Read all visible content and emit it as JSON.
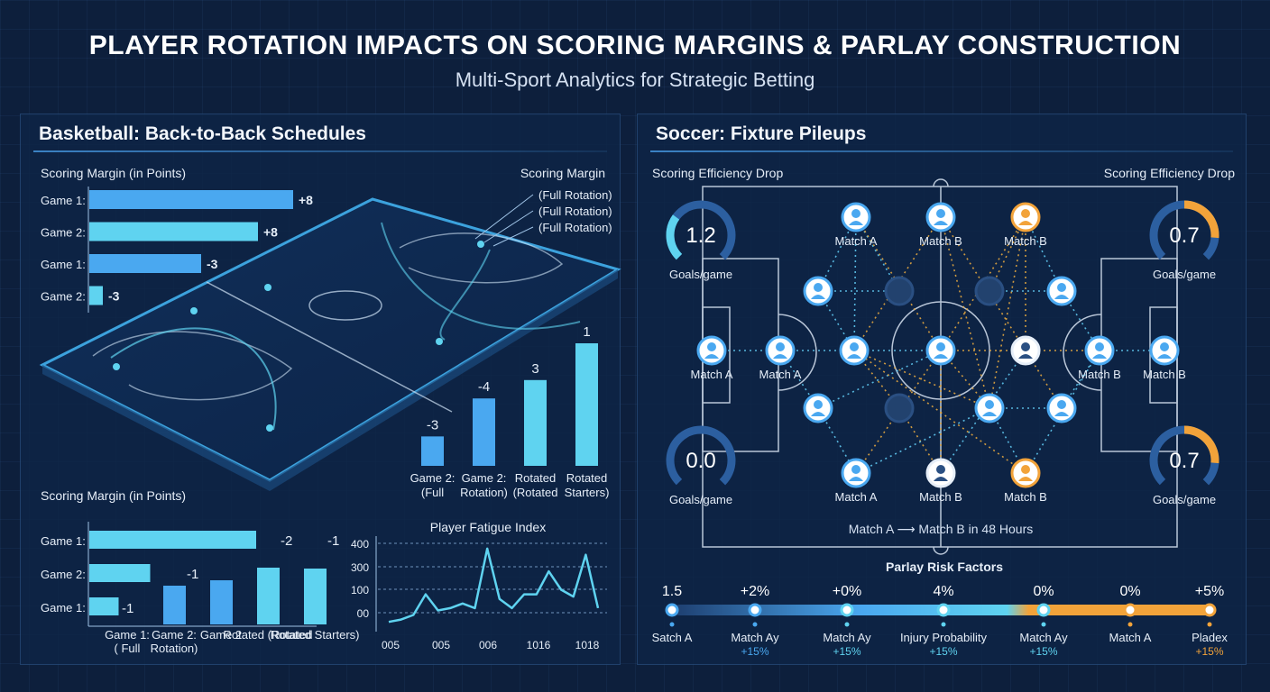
{
  "header": {
    "title": "PLAYER ROTATION IMPACTS ON SCORING MARGINS & PARLAY CONSTRUCTION",
    "subtitle": "Multi-Sport Analytics for Strategic Betting"
  },
  "basketball": {
    "title": "Basketball: Back-to-Back Schedules",
    "court_labels": [
      "(Full Rotation)",
      "(Full Rotation)",
      "(Full Rotation)"
    ],
    "court_heading": "Scoring Margin"
  },
  "soccer": {
    "title": "Soccer: Fixture Pileups",
    "eff_left": "Scoring Efficiency Drop",
    "eff_right": "Scoring Efficiency Drop",
    "caption": "Match A ⟶ Match B in 48 Hours",
    "gauges": [
      {
        "value": "1.2",
        "unit": "Goals/game",
        "fill": 0.3,
        "color": "#5fd3f0"
      },
      {
        "value": "0.7",
        "unit": "Goals/game",
        "fill": 0.35,
        "color": "#f2a33a"
      },
      {
        "value": "0.0",
        "unit": "Goals/game",
        "fill": 0.0,
        "color": "#5fd3f0"
      },
      {
        "value": "0.7",
        "unit": "Goals/game",
        "fill": 0.35,
        "color": "#f2a33a"
      }
    ],
    "node_labels": {
      "top": [
        "Match A",
        "Match B",
        "Match B"
      ],
      "middle_left": [
        "Match A",
        "Match A"
      ],
      "middle_right": [
        "Match B",
        "Match B"
      ],
      "bottom": [
        "Match A",
        "Match B",
        "Match B"
      ]
    }
  },
  "chart_data": [
    {
      "type": "bar",
      "orientation": "horizontal",
      "title": "Scoring Margin (in Points)",
      "categories": [
        "Game 1:",
        "Game 2:",
        "Game 1:",
        "Game 2:"
      ],
      "values": [
        8,
        8,
        -3,
        -3
      ],
      "labels": [
        "+8",
        "+8",
        "-3",
        "-3"
      ],
      "colors": [
        "#4aa8f0",
        "#5fd3f0",
        "#4aa8f0",
        "#5fd3f0"
      ]
    },
    {
      "type": "bar",
      "categories": [
        "Game 2: (Full",
        "Game 2: Rotation)",
        "Rotated (Rotated",
        "Rotated Starters)"
      ],
      "values": [
        -3,
        -4,
        3,
        1
      ],
      "labels": [
        "-3",
        "-4",
        "3",
        "1"
      ],
      "heights": [
        0.24,
        0.55,
        0.7,
        1.0
      ],
      "colors": [
        "#4aa8f0",
        "#4aa8f0",
        "#5fd3f0",
        "#5fd3f0"
      ]
    },
    {
      "type": "bar",
      "title": "Scoring Margin (in Points)",
      "categories": [
        "Game 1: ( Full",
        "Game 2: Rotation)",
        "Game 2",
        "Rotated (Rotated",
        "Rotated Starters)"
      ],
      "row_labels": [
        "Game 1:",
        "Game 2:",
        "Game 1:"
      ],
      "values": [
        -1,
        -1,
        -2,
        -2,
        -1
      ],
      "labels": [
        "-1",
        "-1",
        "",
        "-2",
        "-1"
      ],
      "hbars": [
        0.74,
        0.27,
        0.13
      ]
    },
    {
      "type": "line",
      "title": "Player Fatigue Index",
      "yticks": [
        "400",
        "300",
        "100",
        "00"
      ],
      "xticks": [
        "005",
        "005",
        "006",
        "1016",
        "1018"
      ],
      "values": [
        -40,
        -30,
        -10,
        80,
        10,
        20,
        40,
        20,
        310,
        60,
        20,
        80,
        80,
        200,
        100,
        70,
        280,
        20
      ]
    },
    {
      "type": "line",
      "title": "Parlay Risk Factors",
      "values": [
        "1.5",
        "+2%",
        "+0%",
        "4%",
        "0%",
        "0%",
        "+5%"
      ],
      "names": [
        "Satch A",
        "Match Ay",
        "Match Ay",
        "Injury Probability",
        "Match Ay",
        "Match A",
        "Pladex"
      ],
      "changes": [
        "",
        "+15%",
        "+15%",
        "+15%",
        "+15%",
        "",
        "+15%"
      ],
      "colors": [
        "#4aa8f0",
        "#4aa8f0",
        "#5fd3f0",
        "#5fd3f0",
        "#5fd3f0",
        "#f2a33a",
        "#f2a33a"
      ]
    }
  ]
}
